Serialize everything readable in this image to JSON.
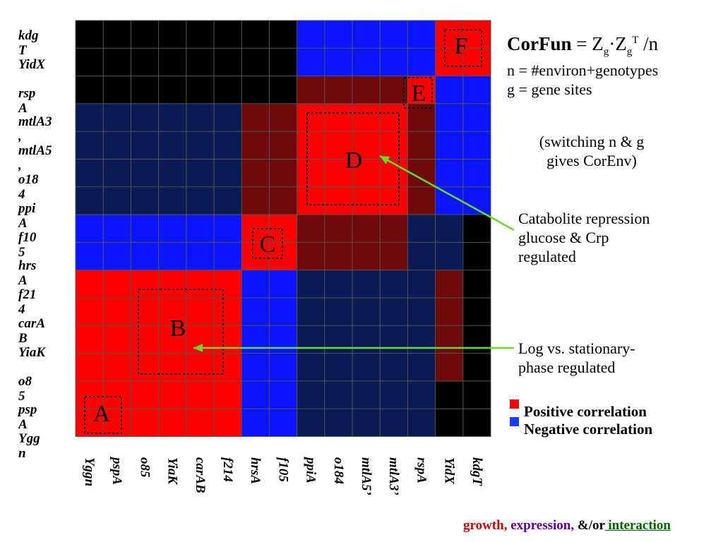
{
  "row_labels": [
    "kdg T",
    "YidX",
    "rsp A",
    "mtlA3 ,",
    "mtlA5 ,",
    "o18 4",
    "ppi A",
    "f10 5",
    "hrs A",
    "f21 4",
    "carA B",
    "YiaK",
    "o8 5",
    "psp A",
    "Ygg n"
  ],
  "col_labels": [
    "Yggn",
    "pspA",
    "o85",
    "YiaK",
    "carAB",
    "f214",
    "hrsA",
    "f105",
    "ppiA",
    "o184",
    "mtlA5’",
    "mtlA3’",
    "rspA",
    "YidX",
    "kdgT"
  ],
  "regions": [
    {
      "label": "A",
      "color": "#000000"
    },
    {
      "label": "B",
      "color": "#000000"
    },
    {
      "label": "C",
      "color": "#000000"
    },
    {
      "label": "D",
      "color": "#000000"
    },
    {
      "label": "E",
      "color": "#000000"
    },
    {
      "label": "F",
      "color": "#000000"
    }
  ],
  "formula": {
    "name": "CorFun",
    "eq": " = Z",
    "sub1": "g",
    "dot": "·Z",
    "sub2": "g",
    "sup": "T",
    "tail": " /n"
  },
  "definitions": [
    "n = #environ+genotypes",
    "g =  gene sites"
  ],
  "switch_note": [
    "(switching n & g",
    "gives CorEnv)"
  ],
  "annotations": [
    {
      "lines": [
        "Catabolite repression",
        "glucose & Crp",
        "regulated"
      ],
      "target": "D",
      "arrow_color": "#66dd22"
    },
    {
      "lines": [
        "Log vs. stationary-",
        "phase regulated"
      ],
      "target": "B",
      "arrow_color": "#66dd22"
    }
  ],
  "legend": [
    {
      "label": "Positive correlation",
      "color": "#ff0000"
    },
    {
      "label": "Negative correlation",
      "color": "#1a3cff"
    }
  ],
  "footer": {
    "growth": "growth,",
    "expression": " expression,",
    "andor": " &/or",
    "interaction": " interaction",
    "growth_color": "#cc0000",
    "expression_color": "#660099",
    "interaction_color": "#006600"
  },
  "colors": {
    "strong_red": "#ff0000",
    "dark_red": "#6e0a0a",
    "blue": "#0a14ff",
    "navy": "#0a1a55",
    "black": "#000000",
    "grid": "#555555"
  }
}
